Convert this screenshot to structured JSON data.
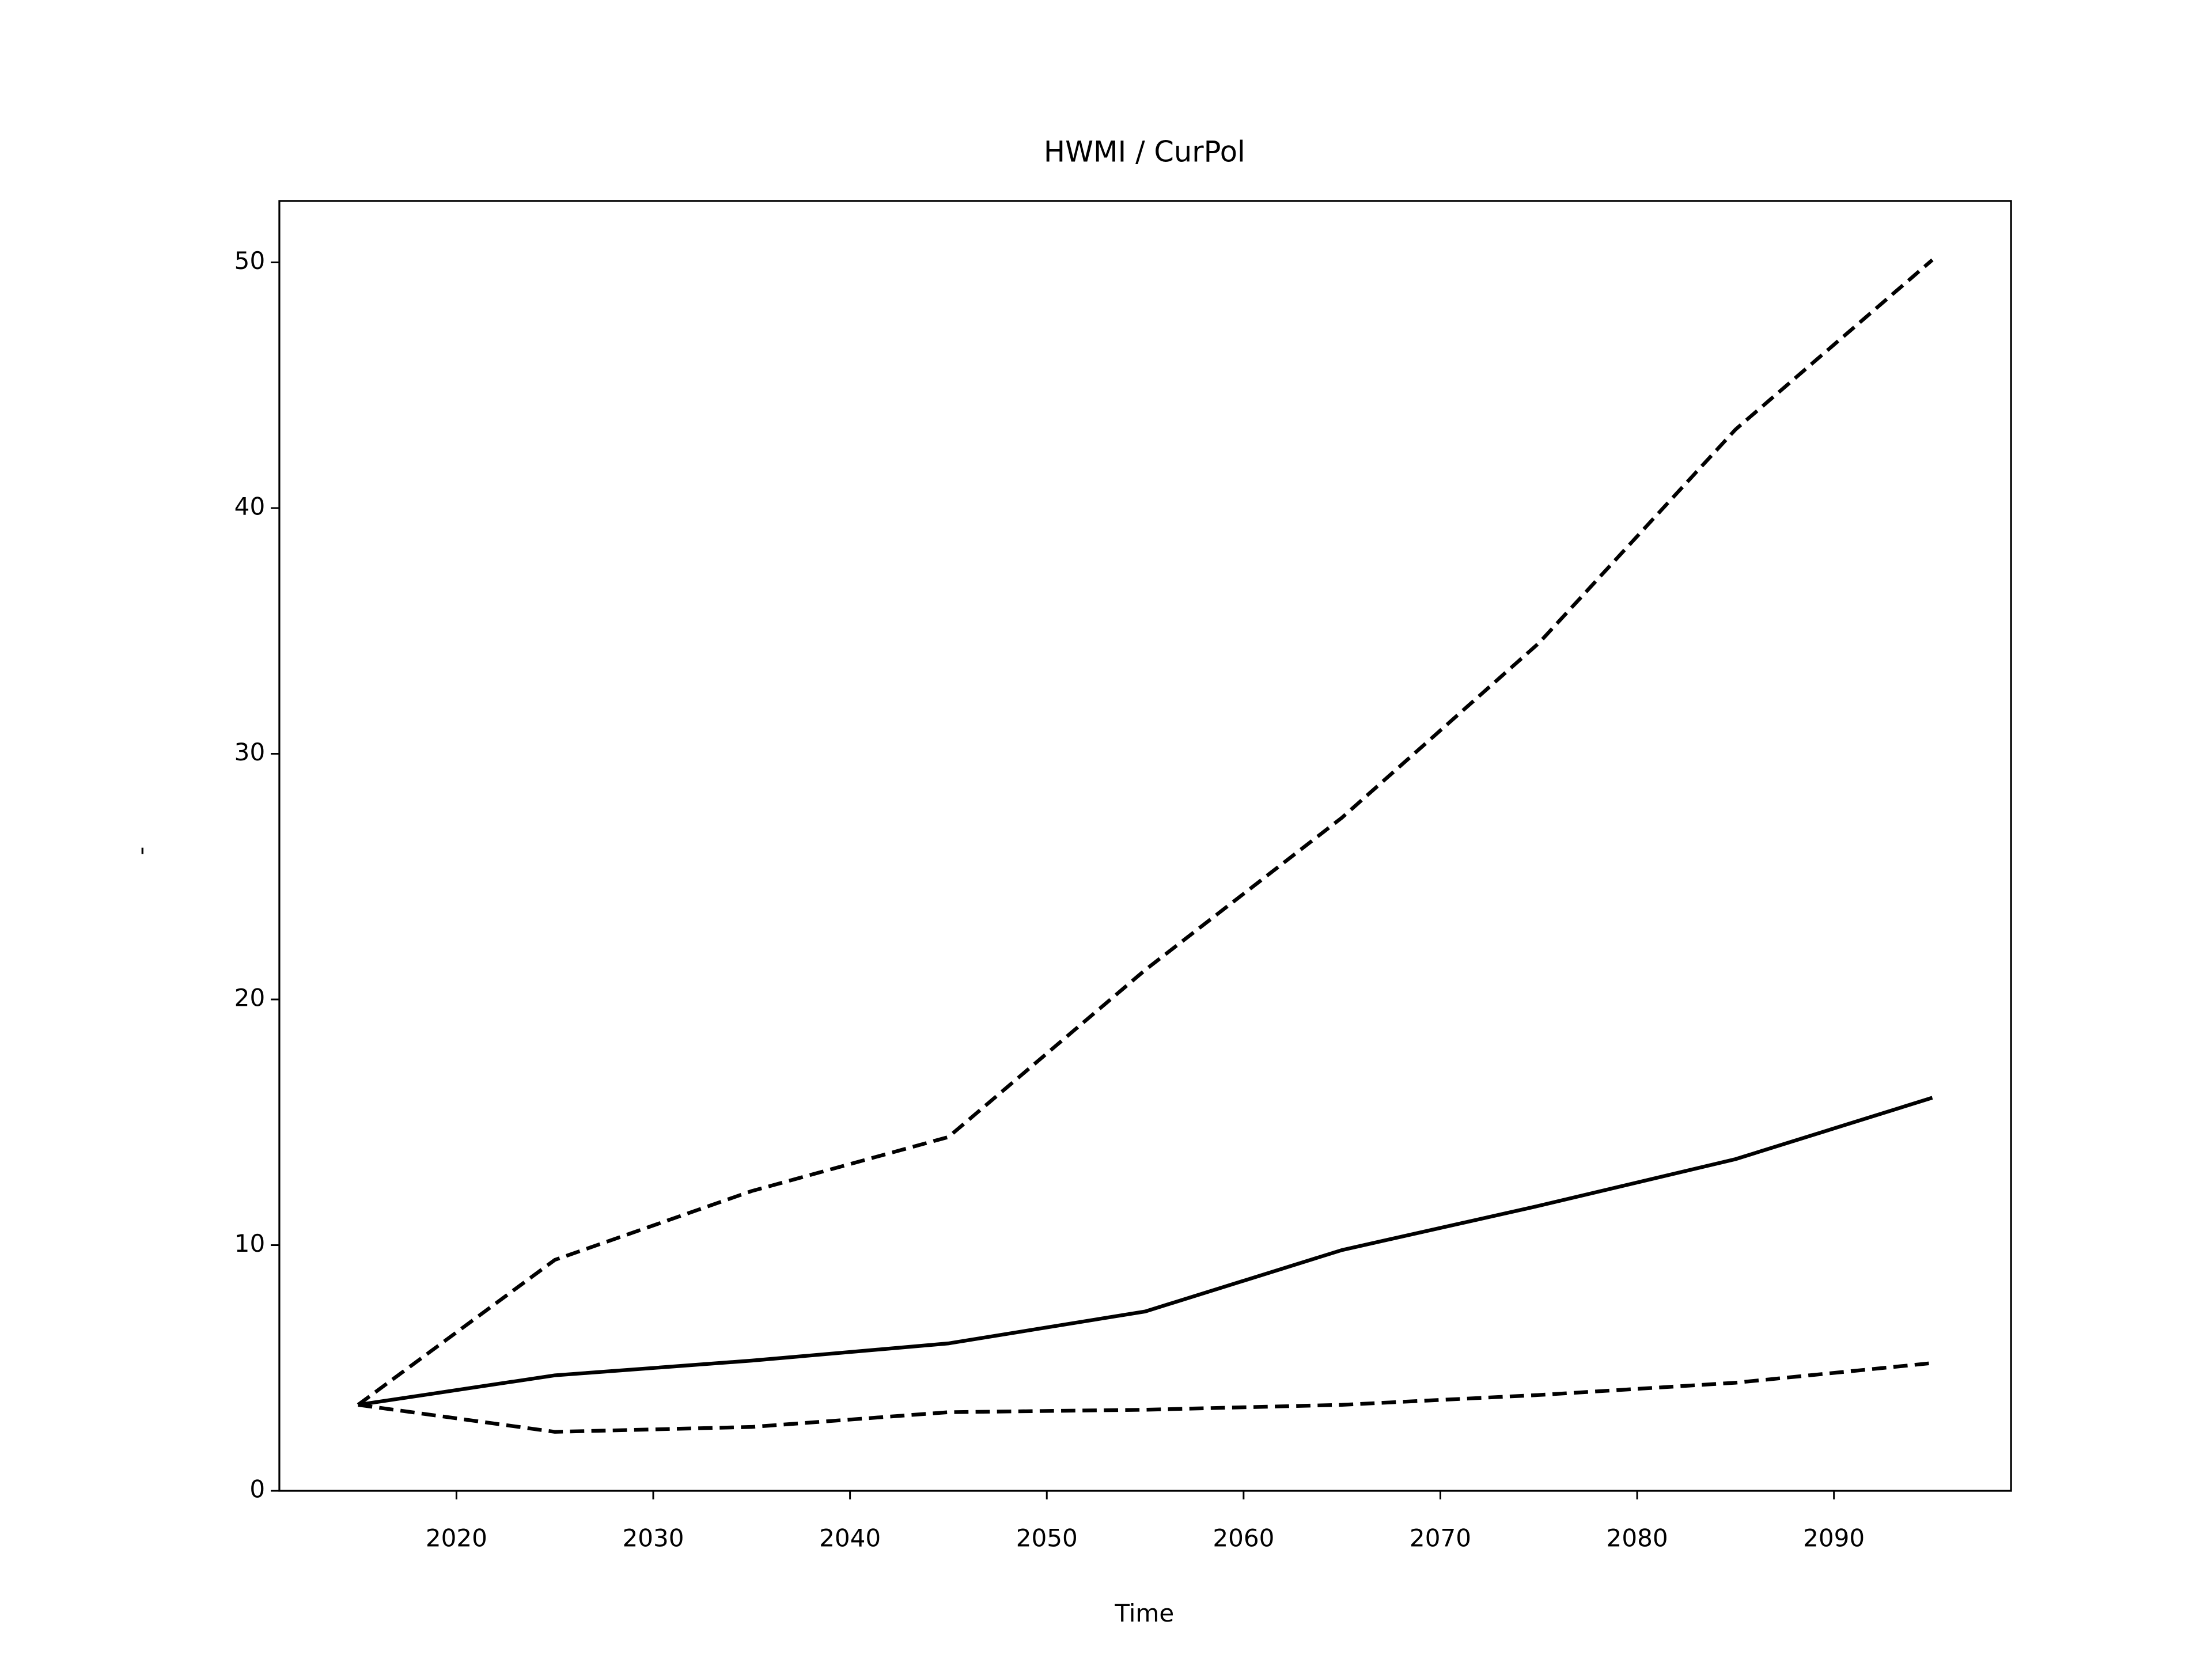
{
  "chart_data": {
    "type": "line",
    "title": "HWMI / CurPol",
    "x_label": "Time",
    "y_label": "-",
    "x": [
      2015,
      2025,
      2035,
      2045,
      2055,
      2065,
      2075,
      2085,
      2095
    ],
    "series": [
      {
        "color": "#000000",
        "linestyle": "solid",
        "values": [
          3.5,
          4.7,
          5.3,
          6.0,
          7.3,
          9.8,
          11.6,
          13.5,
          16.0
        ]
      },
      {
        "color": "#000000",
        "linestyle": "dashed",
        "values": [
          3.5,
          9.4,
          12.2,
          14.4,
          21.2,
          27.4,
          34.5,
          43.2,
          50.1
        ]
      },
      {
        "color": "#000000",
        "linestyle": "dashed",
        "values": [
          3.5,
          2.4,
          2.6,
          3.2,
          3.3,
          3.5,
          3.9,
          4.4,
          5.2
        ]
      }
    ],
    "xlim": [
      2011,
      2099
    ],
    "xticks": [
      2020,
      2030,
      2040,
      2050,
      2060,
      2070,
      2080,
      2090
    ],
    "ylim": [
      0,
      52.5
    ],
    "yticks": [
      0,
      10,
      20,
      30,
      40,
      50
    ],
    "grid": false
  }
}
